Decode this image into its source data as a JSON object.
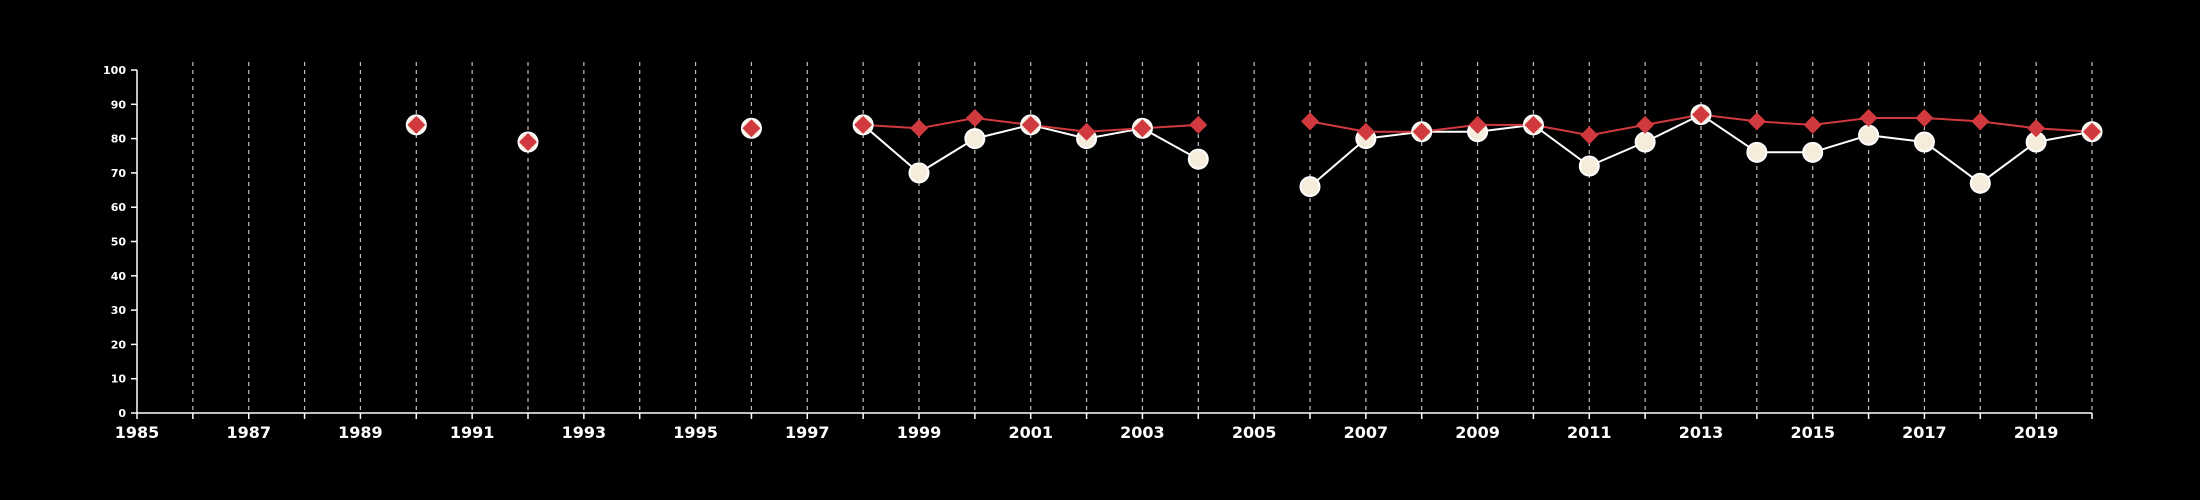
{
  "colors": {
    "background": "#000000",
    "axis": "#ffffff",
    "grid": "#bdbdbd",
    "series_a": "#d03a3f",
    "series_b": "#f6ecdc",
    "series_b_line": "#ffffff",
    "marker_edge": "#ffffff"
  },
  "chart_data": {
    "type": "line",
    "title": "",
    "xlabel": "",
    "ylabel": "",
    "xlim": [
      1985,
      2020
    ],
    "ylim": [
      0,
      100
    ],
    "x_ticks": [
      1985,
      1987,
      1989,
      1991,
      1993,
      1995,
      1997,
      1999,
      2001,
      2003,
      2005,
      2007,
      2009,
      2011,
      2013,
      2015,
      2017,
      2019
    ],
    "y_ticks": [
      0,
      10,
      20,
      30,
      40,
      50,
      60,
      70,
      80,
      90,
      100
    ],
    "grid": {
      "vertical_every_year": true,
      "horizontal": false,
      "style": "dashed"
    },
    "legend": "none",
    "series": [
      {
        "marker": "diamond",
        "color": "#d03a3f",
        "x": [
          1990,
          1992,
          1996,
          1998,
          1999,
          2000,
          2001,
          2002,
          2003,
          2004,
          2006,
          2007,
          2008,
          2009,
          2010,
          2011,
          2012,
          2013,
          2014,
          2015,
          2016,
          2017,
          2018,
          2019,
          2020
        ],
        "values": [
          84,
          79,
          83,
          84,
          83,
          86,
          84,
          82,
          83,
          84,
          85,
          82,
          82,
          84,
          84,
          81,
          84,
          87,
          85,
          84,
          86,
          86,
          85,
          83,
          82
        ]
      },
      {
        "marker": "circle",
        "color": "#f6ecdc",
        "x": [
          1990,
          1992,
          1996,
          1998,
          1999,
          2000,
          2001,
          2002,
          2003,
          2004,
          2006,
          2007,
          2008,
          2009,
          2010,
          2011,
          2012,
          2013,
          2014,
          2015,
          2016,
          2017,
          2018,
          2019,
          2020
        ],
        "values": [
          84,
          79,
          83,
          84,
          70,
          80,
          84,
          80,
          83,
          74,
          66,
          80,
          82,
          82,
          84,
          72,
          79,
          87,
          76,
          76,
          81,
          79,
          67,
          79,
          82
        ]
      }
    ]
  }
}
